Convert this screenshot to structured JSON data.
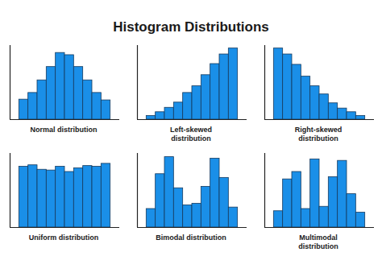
{
  "title": "Histogram Distributions",
  "chart_data": [
    {
      "type": "histogram",
      "title": "Normal distribution",
      "bins": [
        1,
        2,
        3,
        4,
        5,
        6,
        7,
        8,
        9,
        10,
        11
      ],
      "values": [
        27,
        36,
        53,
        71,
        90,
        87,
        71,
        53,
        36,
        26
      ],
      "color": "#1a8fe8",
      "xlim": [
        0,
        12
      ],
      "ylim": [
        0,
        100
      ],
      "tick_labels": false
    },
    {
      "type": "histogram",
      "title": "Left-skewed distribution",
      "bins": [
        1,
        2,
        3,
        4,
        5,
        6,
        7,
        8,
        9,
        10,
        11
      ],
      "values": [
        5,
        10,
        16,
        23,
        36,
        45,
        60,
        75,
        88,
        96
      ],
      "color": "#1a8fe8",
      "xlim": [
        0,
        12
      ],
      "ylim": [
        0,
        100
      ],
      "tick_labels": false
    },
    {
      "type": "histogram",
      "title": "Right-skewed distribution",
      "bins": [
        1,
        2,
        3,
        4,
        5,
        6,
        7,
        8,
        9,
        10,
        11
      ],
      "values": [
        96,
        88,
        74,
        58,
        45,
        34,
        22,
        15,
        10,
        5
      ],
      "color": "#1a8fe8",
      "xlim": [
        0,
        12
      ],
      "ylim": [
        0,
        100
      ],
      "tick_labels": false
    },
    {
      "type": "histogram",
      "title": "Uniform distribution",
      "bins": [
        1,
        2,
        3,
        4,
        5,
        6,
        7,
        8,
        9,
        10,
        11
      ],
      "values": [
        82,
        84,
        78,
        77,
        82,
        75,
        80,
        83,
        82,
        86
      ],
      "color": "#1a8fe8",
      "xlim": [
        0,
        12
      ],
      "ylim": [
        0,
        100
      ],
      "tick_labels": false
    },
    {
      "type": "histogram",
      "title": "Bimodal distribution",
      "bins": [
        1,
        2,
        3,
        4,
        5,
        6,
        7,
        8,
        9,
        10,
        11
      ],
      "values": [
        25,
        72,
        95,
        53,
        30,
        32,
        55,
        93,
        67,
        27
      ],
      "color": "#1a8fe8",
      "xlim": [
        0,
        12
      ],
      "ylim": [
        0,
        100
      ],
      "tick_labels": false
    },
    {
      "type": "histogram",
      "title": "Multimodal distribution",
      "bins": [
        1,
        2,
        3,
        4,
        5,
        6,
        7,
        8,
        9,
        10,
        11
      ],
      "values": [
        22,
        65,
        75,
        25,
        92,
        28,
        68,
        90,
        45,
        20
      ],
      "color": "#1a8fe8",
      "xlim": [
        0,
        12
      ],
      "ylim": [
        0,
        100
      ],
      "tick_labels": false
    }
  ]
}
